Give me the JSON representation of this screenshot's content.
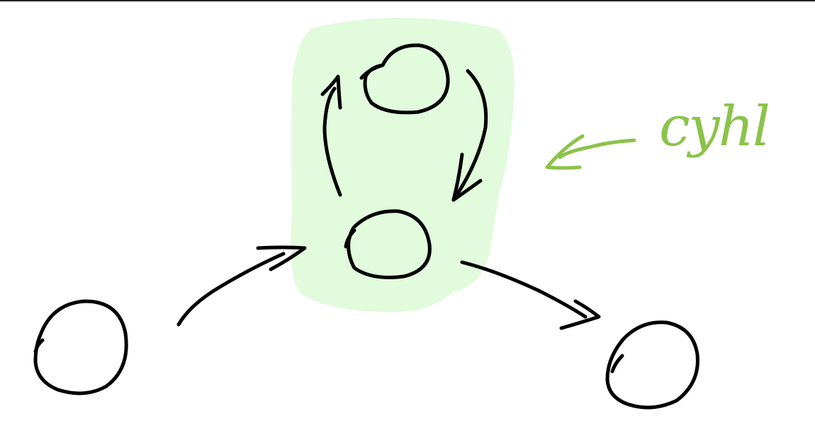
{
  "annotation": {
    "label": "cyhl"
  },
  "colors": {
    "ink": "#000000",
    "highlight": "#e1fbdc",
    "annotation": "#8bc34a",
    "background": "#ffffff"
  },
  "icons": {
    "nodes": "hand-drawn-circle",
    "edges": "hand-drawn-arrow",
    "pointer": "arrow-left-icon"
  }
}
